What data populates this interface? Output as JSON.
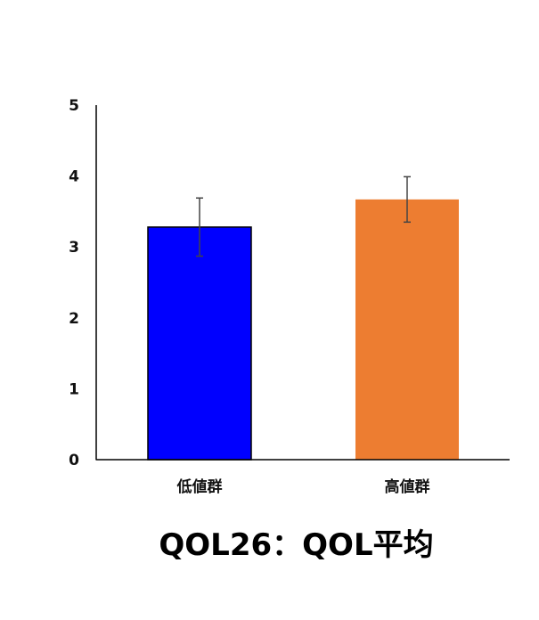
{
  "chart_data": {
    "type": "bar",
    "title": "QOL26：QOL平均",
    "xlabel": "",
    "ylabel": "",
    "categories": [
      "低値群",
      "高値群"
    ],
    "values": [
      3.28,
      3.67
    ],
    "error": [
      0.41,
      0.32
    ],
    "colors": [
      "#0000ff",
      "#ed7d31"
    ],
    "outline": [
      "#000000",
      "none"
    ],
    "ylim": [
      0,
      5
    ],
    "yticks": [
      0,
      1,
      2,
      3,
      4,
      5
    ],
    "grid": false,
    "legend": "none"
  }
}
